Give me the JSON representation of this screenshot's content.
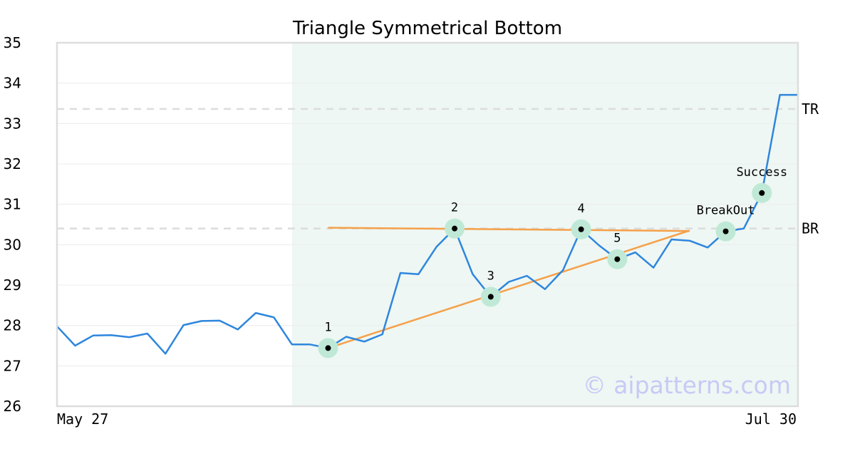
{
  "chart_data": {
    "type": "line",
    "title": "Triangle Symmetrical Bottom",
    "ylim": [
      26,
      35
    ],
    "yticks": [
      "35",
      "34",
      "33",
      "32",
      "31",
      "30",
      "29",
      "28",
      "27",
      "26"
    ],
    "x_labels": [
      "May 27",
      "Jul 30"
    ],
    "grid": true,
    "series": [
      {
        "color": "#2e86de",
        "values": [
          27.98,
          27.5,
          27.75,
          27.76,
          27.71,
          27.8,
          27.3,
          28.01,
          28.11,
          28.12,
          27.9,
          28.31,
          28.2,
          27.53,
          27.53,
          27.44,
          27.72,
          27.6,
          27.78,
          29.3,
          29.27,
          29.95,
          30.4,
          29.27,
          28.71,
          29.08,
          29.23,
          28.9,
          29.37,
          30.38,
          29.98,
          29.64,
          29.81,
          29.43,
          30.13,
          30.1,
          29.93,
          30.33,
          30.4,
          31.28,
          33.71,
          33.71
        ]
      }
    ],
    "pattern_region": {
      "start_index": 13,
      "end_index": 41,
      "color": "#eef7f3"
    },
    "levels": [
      {
        "label": "TR",
        "value": 33.36
      },
      {
        "label": "BR",
        "value": 30.4
      }
    ],
    "trendlines": [
      {
        "color": "#f5a04a",
        "from": [
          15,
          30.42
        ],
        "to": [
          35,
          30.34
        ]
      },
      {
        "color": "#f5a04a",
        "from": [
          15,
          27.44
        ],
        "to": [
          35,
          30.35
        ]
      }
    ],
    "points": [
      {
        "label": "1",
        "index": 15,
        "value": 27.44
      },
      {
        "label": "2",
        "index": 22,
        "value": 30.4
      },
      {
        "label": "3",
        "index": 24,
        "value": 28.71
      },
      {
        "label": "4",
        "index": 29,
        "value": 30.38
      },
      {
        "label": "5",
        "index": 31,
        "value": 29.64
      },
      {
        "label": "BreakOut",
        "index": 37,
        "value": 30.33
      },
      {
        "label": "Success",
        "index": 39,
        "value": 31.28
      }
    ]
  },
  "watermark": "© aipatterns.com"
}
